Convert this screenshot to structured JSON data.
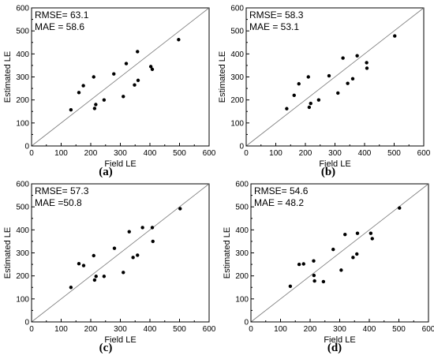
{
  "chart_data": [
    {
      "type": "scatter",
      "panel_label": "(a)",
      "annotations": [
        "RMSE= 63.1",
        "MAE = 58.6"
      ],
      "xlabel": "Field LE",
      "ylabel": "Estimated LE",
      "xlim": [
        0,
        600
      ],
      "ylim": [
        0,
        600
      ],
      "xticks": [
        "0",
        "100",
        "200",
        "300",
        "400",
        "500",
        "600"
      ],
      "yticks": [
        "0",
        "100",
        "200",
        "300",
        "400",
        "500",
        "600"
      ],
      "reference_line": "1:1",
      "points": [
        [
          133,
          157
        ],
        [
          160,
          232
        ],
        [
          175,
          262
        ],
        [
          210,
          300
        ],
        [
          213,
          163
        ],
        [
          217,
          180
        ],
        [
          245,
          200
        ],
        [
          278,
          313
        ],
        [
          310,
          215
        ],
        [
          320,
          358
        ],
        [
          348,
          265
        ],
        [
          358,
          410
        ],
        [
          360,
          285
        ],
        [
          403,
          345
        ],
        [
          408,
          333
        ],
        [
          497,
          462
        ]
      ]
    },
    {
      "type": "scatter",
      "panel_label": "(b)",
      "annotations": [
        "RMSE= 58.3",
        "MAE = 53.1"
      ],
      "xlabel": "Field LE",
      "ylabel": "Estimated LE",
      "xlim": [
        0,
        600
      ],
      "ylim": [
        0,
        600
      ],
      "xticks": [
        "0",
        "100",
        "200",
        "300",
        "400",
        "500",
        "600"
      ],
      "yticks": [
        "0",
        "100",
        "200",
        "300",
        "400",
        "500",
        "600"
      ],
      "reference_line": "1:1",
      "points": [
        [
          137,
          162
        ],
        [
          162,
          220
        ],
        [
          178,
          270
        ],
        [
          210,
          300
        ],
        [
          213,
          168
        ],
        [
          218,
          185
        ],
        [
          245,
          200
        ],
        [
          280,
          305
        ],
        [
          310,
          230
        ],
        [
          327,
          382
        ],
        [
          343,
          272
        ],
        [
          360,
          292
        ],
        [
          375,
          392
        ],
        [
          407,
          362
        ],
        [
          408,
          338
        ],
        [
          502,
          478
        ]
      ]
    },
    {
      "type": "scatter",
      "panel_label": "(c)",
      "annotations": [
        "RMSE= 57.3",
        "MAE =50.8"
      ],
      "xlabel": "Field LE",
      "ylabel": "Estimated LE",
      "xlim": [
        0,
        600
      ],
      "ylim": [
        0,
        600
      ],
      "xticks": [
        "0",
        "100",
        "200",
        "300",
        "400",
        "500",
        "600"
      ],
      "yticks": [
        "0",
        "100",
        "200",
        "300",
        "400",
        "500",
        "600"
      ],
      "reference_line": "1:1",
      "points": [
        [
          133,
          150
        ],
        [
          160,
          253
        ],
        [
          176,
          245
        ],
        [
          210,
          288
        ],
        [
          213,
          182
        ],
        [
          218,
          198
        ],
        [
          245,
          198
        ],
        [
          280,
          320
        ],
        [
          310,
          215
        ],
        [
          330,
          392
        ],
        [
          343,
          280
        ],
        [
          358,
          290
        ],
        [
          375,
          410
        ],
        [
          408,
          410
        ],
        [
          410,
          350
        ],
        [
          502,
          492
        ]
      ]
    },
    {
      "type": "scatter",
      "panel_label": "(d)",
      "annotations": [
        "RMSE= 54.6",
        "MAE = 48.2"
      ],
      "xlabel": "Field LE",
      "ylabel": "Estimated LE",
      "xlim": [
        0,
        600
      ],
      "ylim": [
        0,
        600
      ],
      "xticks": [
        "0",
        "100",
        "200",
        "300",
        "400",
        "500",
        "600"
      ],
      "yticks": [
        "0",
        "100",
        "200",
        "300",
        "400",
        "500",
        "600"
      ],
      "reference_line": "1:1",
      "points": [
        [
          133,
          155
        ],
        [
          163,
          250
        ],
        [
          178,
          252
        ],
        [
          212,
          265
        ],
        [
          213,
          202
        ],
        [
          215,
          178
        ],
        [
          245,
          175
        ],
        [
          278,
          315
        ],
        [
          305,
          225
        ],
        [
          318,
          380
        ],
        [
          345,
          280
        ],
        [
          358,
          295
        ],
        [
          360,
          385
        ],
        [
          405,
          385
        ],
        [
          410,
          362
        ],
        [
          502,
          495
        ]
      ]
    }
  ]
}
